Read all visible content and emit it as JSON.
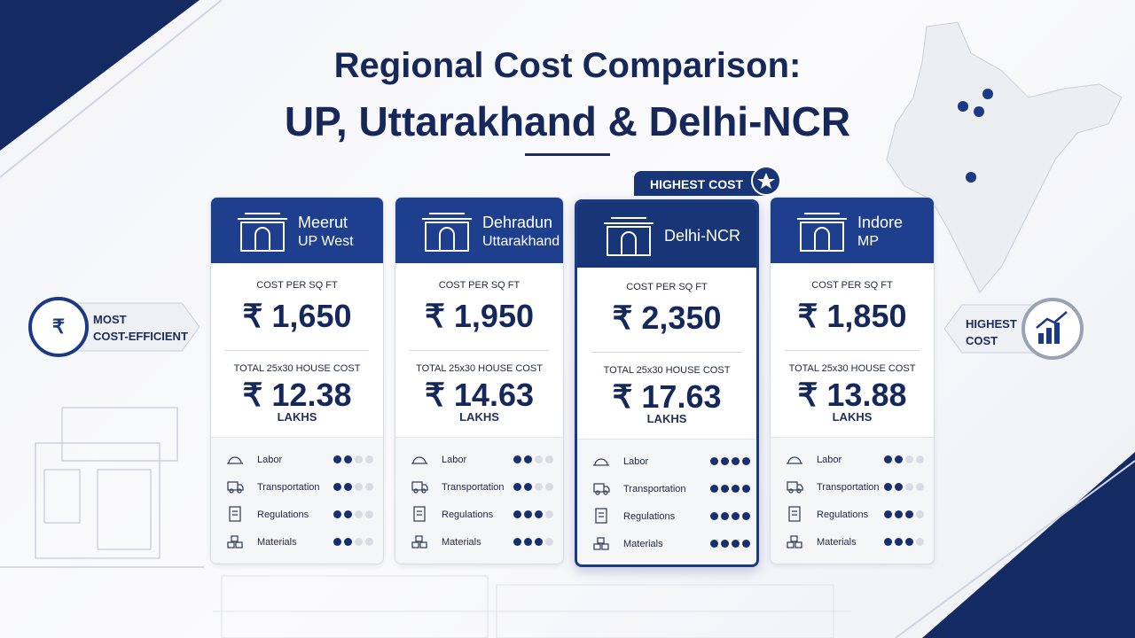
{
  "header": {
    "title_lines": [
      "Regional Cost Comparison:",
      "UP, Uttarakhand & Delhi-NCR"
    ]
  },
  "badge": "HIGHEST COST",
  "left_callout": [
    "MOST",
    "COST-EFFICIENT"
  ],
  "right_callout": [
    "HIGHEST",
    "COST"
  ],
  "max_rating": 4,
  "cards": [
    {
      "city": "Meerut",
      "region": "UP West",
      "cost_label": "COST PER SQ FT",
      "price": "₹ 1,650",
      "total_label": "TOTAL 25x30 HOUSE COST",
      "total": "₹ 12.38",
      "unit": "LAKHS",
      "factors": [
        {
          "name": "Labor",
          "rating": 2
        },
        {
          "name": "Transportation",
          "rating": 2
        },
        {
          "name": "Regulations",
          "rating": 2
        },
        {
          "name": "Materials",
          "rating": 2
        }
      ]
    },
    {
      "city": "Dehradun",
      "region": "Uttarakhand",
      "cost_label": "COST PER SQ FT",
      "price": "₹ 1,950",
      "total_label": "TOTAL 25x30 HOUSE COST",
      "total": "₹ 14.63",
      "unit": "LAKHS",
      "factors": [
        {
          "name": "Labor",
          "rating": 2
        },
        {
          "name": "Transportation",
          "rating": 2
        },
        {
          "name": "Regulations",
          "rating": 3
        },
        {
          "name": "Materials",
          "rating": 3
        }
      ]
    },
    {
      "city": "Delhi-NCR",
      "cost_label": "COST PER SQ FT",
      "price": "₹ 2,350",
      "total_label": "TOTAL 25x30 HOUSE COST",
      "total": "₹ 17.63",
      "unit": "LAKHS",
      "factors": [
        {
          "name": "Labor",
          "rating": 4
        },
        {
          "name": "Transportation",
          "rating": 4
        },
        {
          "name": "Regulations",
          "rating": 4
        },
        {
          "name": "Materials",
          "rating": 4
        }
      ]
    },
    {
      "city": "Indore",
      "region": "MP",
      "cost_label": "COST PER SQ FT",
      "price": "₹ 1,850",
      "total_label": "TOTAL 25x30 HOUSE COST",
      "total": "₹ 13.88",
      "unit": "LAKHS",
      "factors": [
        {
          "name": "Labor",
          "rating": 2
        },
        {
          "name": "Transportation",
          "rating": 2
        },
        {
          "name": "Regulations",
          "rating": 3
        },
        {
          "name": "Materials",
          "rating": 3
        }
      ]
    }
  ]
}
